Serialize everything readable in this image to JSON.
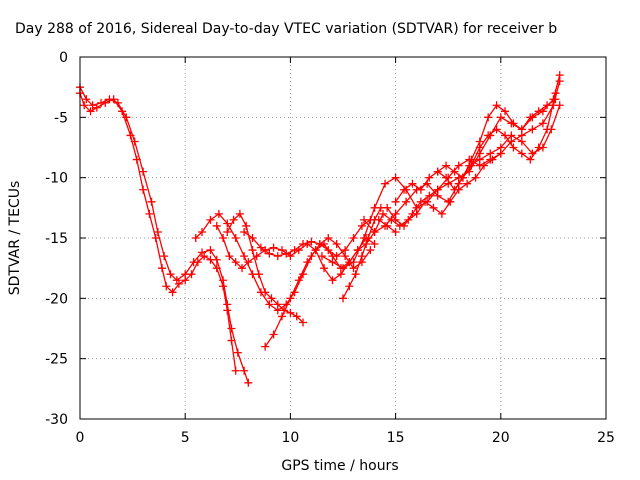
{
  "chart_data": {
    "type": "scatter",
    "title": "Day 288 of 2016, Sidereal Day-to-day VTEC variation (SDTVAR) for receiver b",
    "xlabel": "GPS time / hours",
    "ylabel": "SDTVAR / TECUs",
    "xlim": [
      0,
      25
    ],
    "ylim": [
      -30,
      0
    ],
    "xticks": [
      0,
      5,
      10,
      15,
      20,
      25
    ],
    "yticks": [
      -30,
      -25,
      -20,
      -15,
      -10,
      -5,
      0
    ],
    "xtick_labels": [
      "0",
      "5",
      "10",
      "15",
      "20",
      "25"
    ],
    "ytick_labels": [
      "-30",
      "-25",
      "-20",
      "-15",
      "-10",
      "-5",
      "0"
    ],
    "grid": true,
    "legend": "none",
    "marker": "+",
    "color": "#ff0000",
    "series": [
      {
        "x": [
          0.0,
          0.2,
          0.5,
          0.8,
          1.2,
          1.6,
          2.0,
          2.4,
          2.7,
          3.0,
          3.3,
          3.6,
          3.9,
          4.1,
          4.4,
          4.7,
          5.0,
          5.3,
          5.6,
          5.9,
          6.2,
          6.5,
          6.8,
          7.0,
          7.2,
          7.4
        ],
        "y": [
          -3.0,
          -4.0,
          -4.5,
          -4.2,
          -3.8,
          -3.5,
          -4.5,
          -6.5,
          -8.5,
          -11.0,
          -13.0,
          -15.0,
          -17.5,
          -19.0,
          -19.5,
          -18.8,
          -18.5,
          -18.0,
          -17.0,
          -16.5,
          -16.8,
          -17.5,
          -19.0,
          -21.0,
          -23.5,
          -26.0
        ]
      },
      {
        "x": [
          0.0,
          0.3,
          0.6,
          1.0,
          1.4,
          1.8,
          2.2,
          2.6,
          3.0,
          3.4,
          3.7,
          4.0,
          4.3,
          4.6,
          5.0,
          5.4,
          5.8,
          6.2,
          6.5,
          6.8,
          7.0,
          7.2,
          7.5,
          7.8,
          8.0
        ],
        "y": [
          -2.5,
          -3.5,
          -4.0,
          -3.8,
          -3.5,
          -3.8,
          -5.0,
          -7.0,
          -9.5,
          -12.0,
          -14.5,
          -16.5,
          -18.0,
          -18.5,
          -18.0,
          -17.0,
          -16.2,
          -16.0,
          -16.8,
          -18.5,
          -20.5,
          -22.5,
          -24.5,
          -26.0,
          -27.0
        ]
      },
      {
        "x": [
          5.5,
          5.8,
          6.2,
          6.6,
          7.0,
          7.4,
          7.8,
          8.2,
          8.6,
          9.0,
          9.4,
          9.8,
          10.2,
          10.6,
          11.0,
          11.4,
          11.8,
          12.2,
          12.6,
          13.0,
          13.4,
          13.8
        ],
        "y": [
          -15.0,
          -14.5,
          -13.5,
          -13.0,
          -13.8,
          -15.0,
          -16.5,
          -18.0,
          -19.5,
          -20.5,
          -21.0,
          -20.5,
          -19.5,
          -18.0,
          -16.5,
          -15.5,
          -15.0,
          -15.5,
          -16.5,
          -17.5,
          -17.0,
          -16.0
        ]
      },
      {
        "x": [
          6.5,
          6.8,
          7.1,
          7.4,
          7.7,
          8.0,
          8.4,
          8.8,
          9.2,
          9.6,
          10.0,
          10.4,
          10.8,
          11.2,
          11.6,
          12.0,
          12.4,
          12.8,
          13.2,
          13.6,
          14.0
        ],
        "y": [
          -14.0,
          -15.0,
          -16.5,
          -17.0,
          -17.5,
          -17.0,
          -16.5,
          -16.0,
          -15.8,
          -16.0,
          -16.5,
          -16.0,
          -15.5,
          -16.0,
          -17.5,
          -18.5,
          -18.0,
          -17.0,
          -16.0,
          -15.0,
          -15.5
        ]
      },
      {
        "x": [
          7.0,
          7.3,
          7.6,
          7.9,
          8.2,
          8.5,
          8.8,
          9.1,
          9.4,
          9.7,
          10.0,
          10.3,
          10.6
        ],
        "y": [
          -14.5,
          -13.5,
          -13.0,
          -14.0,
          -16.0,
          -18.0,
          -19.5,
          -20.0,
          -20.5,
          -21.0,
          -21.2,
          -21.5,
          -22.0
        ]
      },
      {
        "x": [
          7.8,
          8.2,
          8.6,
          9.0,
          9.4,
          9.8,
          10.2,
          10.6,
          11.0,
          11.4,
          11.8,
          12.2,
          12.6,
          13.0,
          13.4,
          13.8,
          14.2,
          14.6,
          15.0
        ],
        "y": [
          -14.5,
          -15.0,
          -15.8,
          -16.3,
          -16.5,
          -16.3,
          -16.0,
          -15.5,
          -15.3,
          -15.5,
          -16.0,
          -16.5,
          -16.0,
          -15.0,
          -14.0,
          -13.5,
          -13.5,
          -14.0,
          -14.5
        ]
      },
      {
        "x": [
          8.8,
          9.2,
          9.6,
          10.0,
          10.4,
          10.8,
          11.2,
          11.6,
          12.0,
          12.4,
          12.8,
          13.2,
          13.6,
          14.0,
          14.4,
          14.8,
          15.2,
          15.6,
          16.0,
          16.4,
          16.8,
          17.2,
          17.6,
          18.0,
          18.4,
          18.8,
          19.2,
          19.6,
          20.0
        ],
        "y": [
          -24.0,
          -23.0,
          -21.5,
          -20.0,
          -18.5,
          -17.0,
          -16.0,
          -15.5,
          -16.5,
          -17.5,
          -17.0,
          -16.0,
          -15.5,
          -14.5,
          -13.0,
          -13.5,
          -14.0,
          -13.5,
          -13.0,
          -12.0,
          -12.5,
          -13.0,
          -12.0,
          -11.0,
          -10.5,
          -10.0,
          -9.0,
          -8.5,
          -8.0
        ]
      },
      {
        "x": [
          11.5,
          12.0,
          12.5,
          13.0,
          13.5,
          14.0,
          14.5,
          15.0,
          15.5,
          16.0,
          16.5,
          17.0,
          17.5,
          18.0,
          18.5,
          19.0,
          19.5,
          20.0,
          20.5,
          21.0,
          21.5,
          22.0,
          22.5,
          22.8
        ],
        "y": [
          -16.5,
          -17.0,
          -17.5,
          -17.0,
          -15.0,
          -12.5,
          -10.5,
          -10.0,
          -11.0,
          -12.5,
          -12.0,
          -11.0,
          -10.0,
          -9.0,
          -8.5,
          -9.0,
          -8.5,
          -8.0,
          -7.0,
          -6.5,
          -6.0,
          -5.5,
          -4.0,
          -2.0
        ]
      },
      {
        "x": [
          12.5,
          12.8,
          13.1,
          13.4,
          13.7,
          14.0,
          14.3,
          14.6,
          15.0,
          15.4,
          15.8,
          16.2,
          16.6,
          17.0,
          17.5,
          18.0,
          18.5,
          19.0,
          19.5,
          20.0,
          20.5,
          21.0,
          21.5,
          22.0,
          22.5,
          22.8
        ],
        "y": [
          -20.0,
          -19.0,
          -18.0,
          -16.5,
          -15.0,
          -13.5,
          -12.5,
          -12.5,
          -13.5,
          -14.0,
          -13.0,
          -12.0,
          -11.5,
          -11.0,
          -10.5,
          -10.0,
          -9.5,
          -8.0,
          -6.5,
          -5.0,
          -5.5,
          -6.0,
          -5.0,
          -4.5,
          -3.5,
          -1.5
        ]
      },
      {
        "x": [
          13.5,
          14.0,
          14.5,
          15.0,
          15.5,
          16.0,
          16.5,
          17.0,
          17.5,
          18.0,
          18.5,
          19.0,
          19.5,
          20.0,
          20.5,
          21.0,
          21.5,
          22.0,
          22.4,
          22.8
        ],
        "y": [
          -13.5,
          -14.5,
          -14.0,
          -13.0,
          -12.0,
          -11.0,
          -10.5,
          -11.5,
          -12.0,
          -10.5,
          -9.0,
          -8.5,
          -8.0,
          -7.5,
          -6.5,
          -7.0,
          -8.0,
          -7.5,
          -6.0,
          -4.0
        ]
      },
      {
        "x": [
          15.0,
          15.4,
          15.8,
          16.2,
          16.6,
          17.0,
          17.4,
          17.8,
          18.2,
          18.6,
          19.0,
          19.4,
          19.8,
          20.2,
          20.6,
          21.0,
          21.4,
          21.8,
          22.2,
          22.6
        ],
        "y": [
          -12.0,
          -11.0,
          -10.5,
          -11.0,
          -10.0,
          -9.5,
          -9.0,
          -9.5,
          -10.0,
          -9.0,
          -7.5,
          -6.5,
          -6.0,
          -6.5,
          -7.5,
          -8.0,
          -8.5,
          -7.5,
          -6.0,
          -3.0
        ]
      },
      {
        "x": [
          17.0,
          17.4,
          17.8,
          18.2,
          18.6,
          19.0,
          19.4,
          19.8,
          20.2,
          20.6,
          21.0,
          21.4,
          21.8,
          22.2,
          22.6
        ],
        "y": [
          -9.5,
          -10.0,
          -11.0,
          -10.0,
          -8.5,
          -7.0,
          -5.0,
          -4.0,
          -4.5,
          -5.5,
          -6.0,
          -5.0,
          -4.5,
          -4.0,
          -3.5
        ]
      }
    ]
  }
}
